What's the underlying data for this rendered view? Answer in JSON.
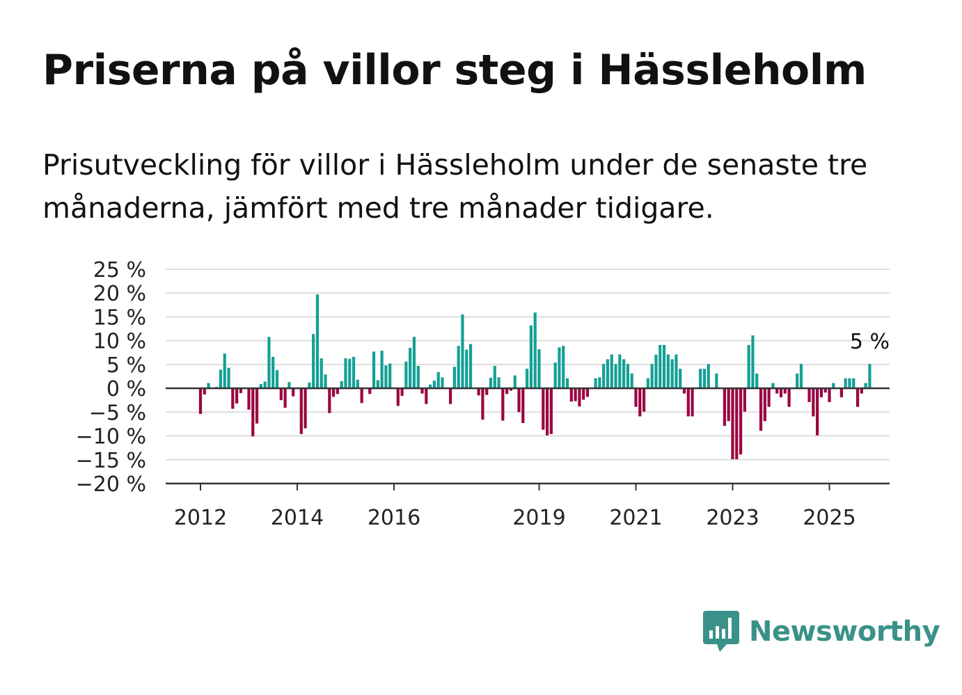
{
  "title": "Priserna på villor steg i Hässleholm",
  "subtitle": "Prisutveckling för villor i Hässleholm under de senaste tre månaderna, jämfört med tre månader tidigare.",
  "brand": {
    "name": "Newsworthy",
    "icon": "newsworthy-logo-icon"
  },
  "colors": {
    "positive": "#14a094",
    "negative": "#9b0442",
    "grid": "#dddddd",
    "axis": "#333333",
    "text": "#222222"
  },
  "chart_data": {
    "type": "bar",
    "ylim": [
      -20,
      25
    ],
    "yticks": [
      {
        "value": 25,
        "label": "25 %"
      },
      {
        "value": 20,
        "label": "20 %"
      },
      {
        "value": 15,
        "label": "15 %"
      },
      {
        "value": 10,
        "label": "10 %"
      },
      {
        "value": 5,
        "label": "5 %"
      },
      {
        "value": 0,
        "label": "0 %"
      },
      {
        "value": -5,
        "label": "−5 %"
      },
      {
        "value": -10,
        "label": "−10 %"
      },
      {
        "value": -15,
        "label": "−15 %"
      },
      {
        "value": -20,
        "label": "−20 %"
      }
    ],
    "xticks": [
      "2012",
      "2014",
      "2016",
      "2019",
      "2021",
      "2023",
      "2025"
    ],
    "start": "2012-01",
    "values": [
      -5.4,
      -1.3,
      1.1,
      0,
      0.3,
      3.9,
      7.3,
      4.3,
      -4.3,
      -3.2,
      -1,
      0,
      -4.5,
      -10.1,
      -7.4,
      0.9,
      1.4,
      10.8,
      6.6,
      3.8,
      -2.5,
      -4.1,
      1.3,
      -1.7,
      0,
      -9.6,
      -8.4,
      1.2,
      11.4,
      19.7,
      6.3,
      2.9,
      -5.2,
      -1.8,
      -1.2,
      1.5,
      6.3,
      6.2,
      6.6,
      1.8,
      -3.1,
      0,
      -1.2,
      7.7,
      1.7,
      7.9,
      4.8,
      5.2,
      0,
      -3.7,
      -1.6,
      5.6,
      8.5,
      10.8,
      4.7,
      -1.1,
      -3.3,
      0.8,
      1.6,
      3.4,
      2.3,
      0,
      -3.3,
      4.5,
      8.9,
      15.5,
      8.1,
      9.3,
      0,
      -1.5,
      -6.6,
      -1.4,
      2.2,
      4.7,
      2.3,
      -6.8,
      -1.2,
      -0.5,
      2.7,
      -5,
      -7.3,
      4.1,
      13.2,
      15.9,
      8.2,
      -8.7,
      -9.9,
      -9.6,
      5.4,
      8.6,
      8.9,
      2.1,
      -2.8,
      -2.7,
      -3.8,
      -2.4,
      -1.8,
      0,
      2.1,
      2.3,
      5.1,
      6.1,
      7.1,
      5.1,
      7.1,
      6.1,
      5.1,
      3.1,
      -3.9,
      -5.9,
      -4.9,
      2.1,
      5.1,
      7.1,
      9.1,
      9.1,
      7.1,
      6.1,
      7.1,
      4.1,
      -1.1,
      -5.9,
      -5.9,
      0,
      4.1,
      4.1,
      5.1,
      0,
      3.1,
      0,
      -7.9,
      -6.9,
      -14.9,
      -14.9,
      -13.9,
      -4.9,
      9.1,
      11.1,
      3.1,
      -8.9,
      -6.9,
      -3.9,
      1.1,
      -1.1,
      -1.9,
      -1.1,
      -3.9,
      0,
      3.1,
      5.1,
      0,
      -2.9,
      -5.9,
      -9.9,
      -1.9,
      -0.9,
      -2.9,
      1.1,
      0,
      -1.9,
      2.1,
      2.1,
      2.1,
      -3.9,
      -1.1,
      1.1,
      5.1
    ],
    "annotation": {
      "label": "5 %",
      "target": "last"
    }
  }
}
